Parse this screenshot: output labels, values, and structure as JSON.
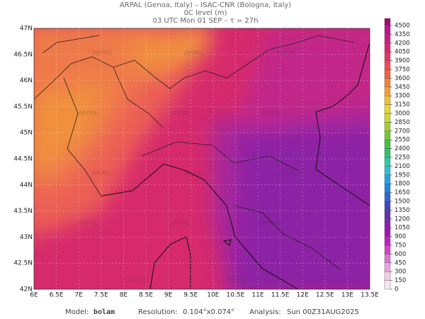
{
  "header": {
    "line1": "ARPAL (Genoa, Italy)  –  ISAC-CNR (Bologna, Italy)",
    "line2": "0C level (m)",
    "line3": "03 UTC Mon 01 SEP  –  τ = 27h"
  },
  "map": {
    "lon_labels": [
      "6E",
      "6.5E",
      "7E",
      "7.5E",
      "8E",
      "8.5E",
      "9E",
      "9.5E",
      "10E",
      "10.5E",
      "11E",
      "11.5E",
      "12E",
      "12.5E",
      "13E",
      "13.5E"
    ],
    "lat_labels": [
      "42N",
      "42.5N",
      "43N",
      "43.5N",
      "44N",
      "44.5N",
      "45N",
      "45.5N",
      "46N",
      "46.5N",
      "47N"
    ],
    "watermark": "ARPAL"
  },
  "colorbar": {
    "levels": [
      0,
      150,
      300,
      450,
      600,
      750,
      900,
      1050,
      1200,
      1350,
      1500,
      1650,
      1800,
      1950,
      2100,
      2250,
      2400,
      2550,
      2700,
      2850,
      3000,
      3150,
      3300,
      3450,
      3600,
      3750,
      3900,
      4050,
      4200,
      4350,
      4500
    ],
    "colors": [
      "#f6e8f2",
      "#f0cce8",
      "#e8a4de",
      "#e074d2",
      "#d244ca",
      "#c020c0",
      "#a412b8",
      "#8422b2",
      "#6232b2",
      "#4444c2",
      "#3064d2",
      "#2284e0",
      "#22a4e0",
      "#30c0d2",
      "#30c8a2",
      "#30c070",
      "#42c042",
      "#72c832",
      "#a2d032",
      "#cad832",
      "#e8d632",
      "#f2c032",
      "#f2a032",
      "#f08232",
      "#f06242",
      "#f04a52",
      "#e83262",
      "#e02272",
      "#d01a82",
      "#c01292",
      "#a00a72"
    ]
  },
  "footer": {
    "model_label": "Model:",
    "model": "bolam",
    "res_label": "Resolution:",
    "res": "0.104°x0.074°",
    "an_label": "Analysis:",
    "an": "Sun 00Z31AUG2025"
  }
}
